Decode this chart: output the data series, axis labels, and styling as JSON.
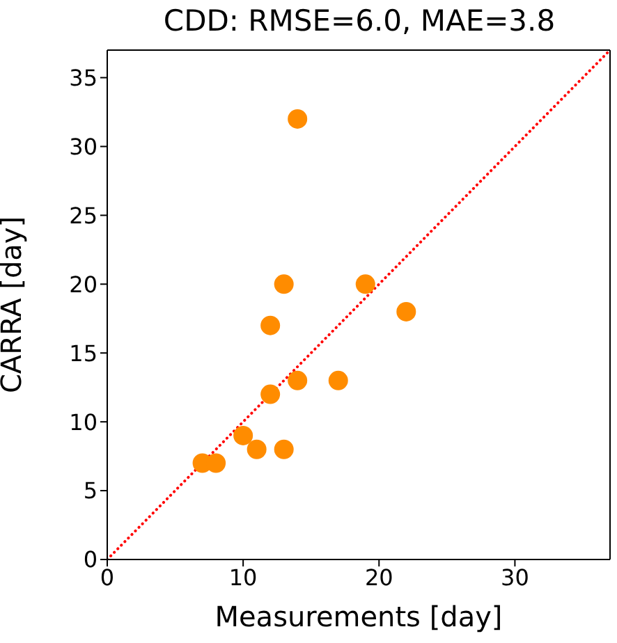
{
  "chart_data": {
    "type": "scatter",
    "title": "CDD: RMSE=6.0, MAE=3.8",
    "xlabel": "Measurements [day]",
    "ylabel": "CARRA [day]",
    "xlim": [
      0,
      37
    ],
    "ylim": [
      0,
      37
    ],
    "xticks": [
      0,
      10,
      20,
      30
    ],
    "yticks": [
      0,
      5,
      10,
      15,
      20,
      25,
      30,
      35
    ],
    "grid": false,
    "legend": false,
    "marker": "circle",
    "series": [
      {
        "color": "#ff8c00",
        "x": [
          7,
          8,
          10,
          11,
          12,
          12,
          13,
          13,
          14,
          14,
          17,
          19,
          22
        ],
        "values": [
          7,
          7,
          9,
          8,
          12,
          17,
          20,
          8,
          13,
          32,
          13,
          20,
          18
        ]
      },
      {
        "type": "line",
        "color": "#ff0000",
        "line_style": "dotted",
        "marker": "none",
        "x": [
          0,
          37
        ],
        "values": [
          0,
          37
        ]
      }
    ]
  }
}
